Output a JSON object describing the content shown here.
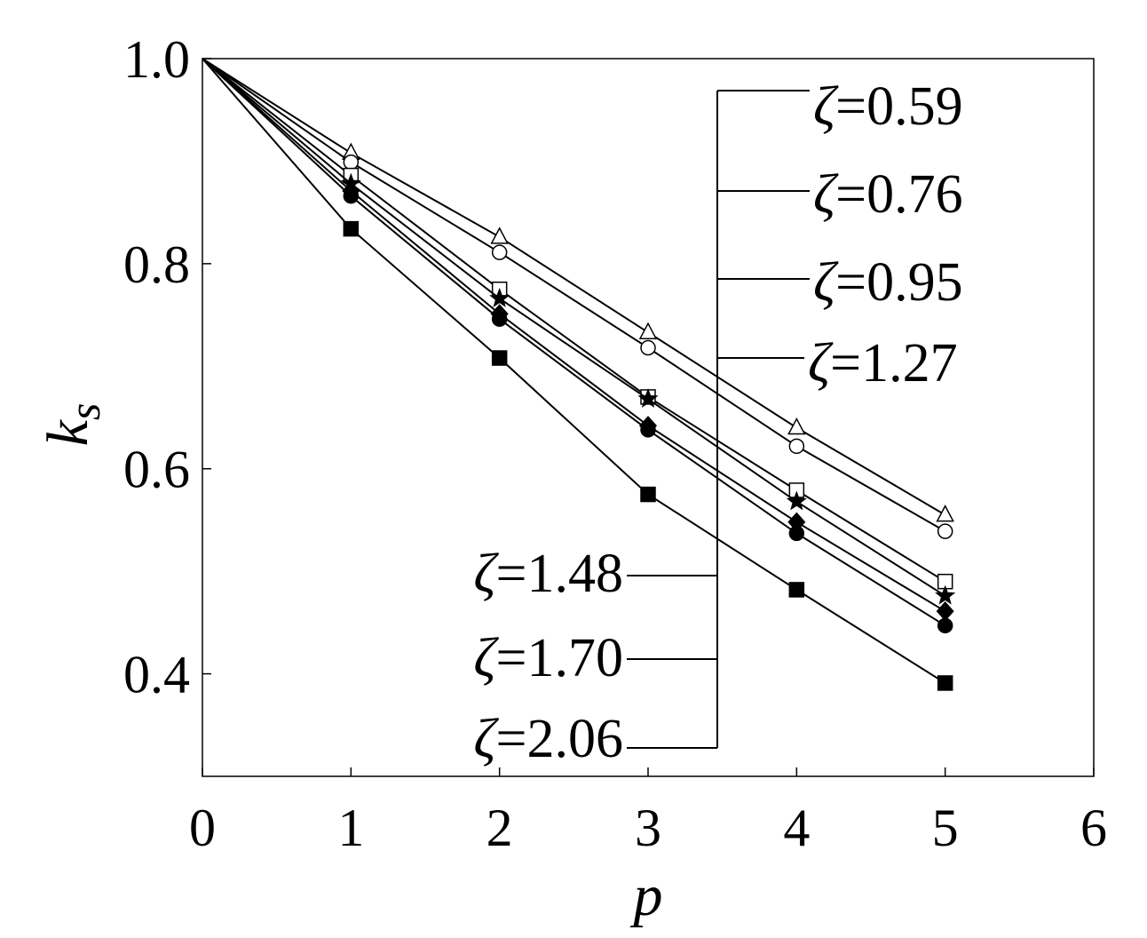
{
  "chart_data": {
    "type": "line",
    "xlabel": "p",
    "ylabel_main": "k",
    "ylabel_sub": "s",
    "xlim": [
      0,
      6
    ],
    "ylim": [
      0.3,
      1.0
    ],
    "xticks": [
      0,
      1,
      2,
      3,
      4,
      5,
      6
    ],
    "xtick_labels": [
      "0",
      "1",
      "2",
      "3",
      "4",
      "5",
      "6"
    ],
    "yticks": [
      0.4,
      0.6,
      0.8,
      1.0
    ],
    "ytick_labels": [
      "0.4",
      "0.6",
      "0.8",
      "1.0"
    ],
    "grid": false,
    "legend_symbol": "ζ",
    "series": [
      {
        "name": "=0.59",
        "marker": "triangle-open",
        "x": [
          0,
          1,
          2,
          3,
          4,
          5
        ],
        "values": [
          1.0,
          0.908,
          0.826,
          0.733,
          0.64,
          0.555
        ]
      },
      {
        "name": "=0.76",
        "marker": "circle-open",
        "x": [
          0,
          1,
          2,
          3,
          4,
          5
        ],
        "values": [
          1.0,
          0.899,
          0.811,
          0.718,
          0.622,
          0.539
        ]
      },
      {
        "name": "=0.95",
        "marker": "square-open",
        "x": [
          0,
          1,
          2,
          3,
          4,
          5
        ],
        "values": [
          1.0,
          0.886,
          0.775,
          0.67,
          0.579,
          0.49
        ]
      },
      {
        "name": "=1.27",
        "marker": "star",
        "x": [
          0,
          1,
          2,
          3,
          4,
          5
        ],
        "values": [
          1.0,
          0.878,
          0.766,
          0.668,
          0.568,
          0.476
        ]
      },
      {
        "name": "=1.48",
        "marker": "diamond-filled",
        "x": [
          0,
          1,
          2,
          3,
          4,
          5
        ],
        "values": [
          1.0,
          0.871,
          0.751,
          0.642,
          0.548,
          0.461
        ]
      },
      {
        "name": "=1.70",
        "marker": "circle-filled",
        "x": [
          0,
          1,
          2,
          3,
          4,
          5
        ],
        "values": [
          1.0,
          0.866,
          0.746,
          0.638,
          0.537,
          0.447
        ]
      },
      {
        "name": "=2.06",
        "marker": "square-filled",
        "x": [
          0,
          1,
          2,
          3,
          4,
          5
        ],
        "values": [
          1.0,
          0.834,
          0.708,
          0.575,
          0.482,
          0.391
        ]
      }
    ]
  }
}
